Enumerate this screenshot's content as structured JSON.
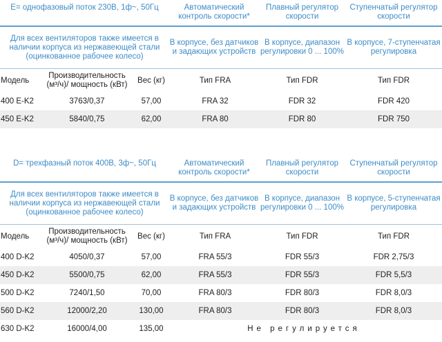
{
  "e_block": {
    "header": [
      "E= однофазовый поток 230В, 1ф~, 50Гц",
      "Автоматический контроль скорости*",
      "Плавный регулятор скорости",
      "Ступенчатый регулятор скорости"
    ],
    "sub": [
      "Для всех вентиляторов также имеется в наличии корпуса из нержавеющей стали (оцинкованное рабочее колесо)",
      "В корпусе, без датчиков и задающих устройств",
      "В корпусе, диапазон регулировки 0 ... 100%",
      "В корпусе, 7-ступенчатая регулировка"
    ],
    "cols": [
      "Модель",
      "Производительность (м³/ч)/ мощность (кВт)",
      "Вес (кг)",
      "Тип FRA",
      "Тип FDR",
      "Тип FDR"
    ],
    "rows": [
      [
        "400 E-K2",
        "3763/0,37",
        "57,00",
        "FRA 32",
        "FDR 32",
        "FDR 420"
      ],
      [
        "450 E-K2",
        "5840/0,75",
        "62,00",
        "FRA 80",
        "FDR 80",
        "FDR 750"
      ]
    ]
  },
  "d_block": {
    "header": [
      "D= трехфазный поток 400В, 3ф~, 50Гц",
      "Автоматический контроль скорости*",
      "Плавный регулятор скорости",
      "Ступенчатый регулятор скорости"
    ],
    "sub": [
      "Для всех вентиляторов также имеется в наличии корпуса из нержавеющей стали (оцинкованное рабочее колесо)",
      "В корпусе, без датчиков и задающих устройств",
      "В корпусе, диапазон регулировки 0 ... 100%",
      "В корпусе, 5-ступенчатая регулировка"
    ],
    "cols": [
      "Модель",
      "Производительность (м³/ч)/ мощность (кВт)",
      "Вес (кг)",
      "Тип FRA",
      "Тип FDR",
      "Тип FDR"
    ],
    "rows": [
      [
        "400 D-K2",
        "4050/0,37",
        "57,00",
        "FRA 55/3",
        "FDR 55/3",
        "FDR 2,75/3"
      ],
      [
        "450 D-K2",
        "5500/0,75",
        "62,00",
        "FRA 55/3",
        "FDR 55/3",
        "FDR 5,5/3"
      ],
      [
        "500 D-K2",
        "7240/1,50",
        "70,00",
        "FRA 80/3",
        "FDR 80/3",
        "FDR 8,0/3"
      ],
      [
        "560 D-K2",
        "12000/2,20",
        "130,00",
        "FRA 80/3",
        "FDR 80/3",
        "FDR 8,0/3"
      ],
      [
        "630 D-K2",
        "16000/4,00",
        "135,00",
        "",
        "",
        ""
      ]
    ],
    "not_regulated": "Не регулируется"
  }
}
